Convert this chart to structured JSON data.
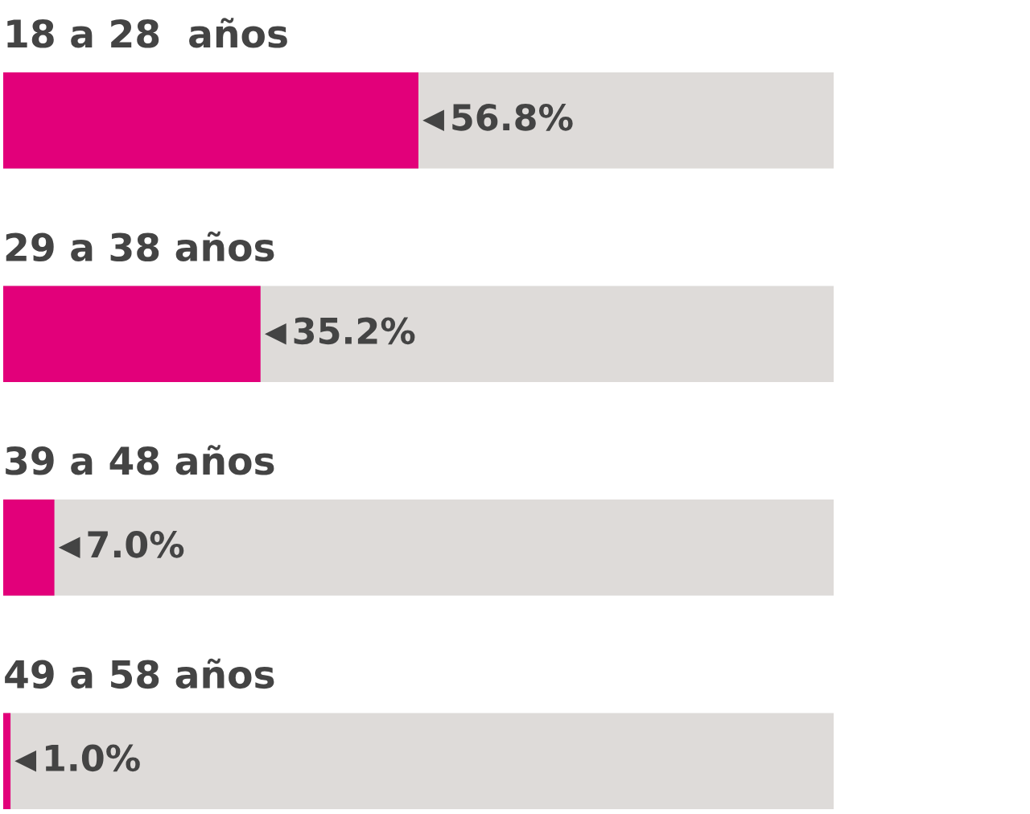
{
  "chart_data": {
    "type": "bar",
    "orientation": "horizontal",
    "categories": [
      "18 a 28  años",
      "29 a 38 años",
      "39 a 48 años",
      "49 a 58 años"
    ],
    "values": [
      56.8,
      35.2,
      7.0,
      1.0
    ],
    "color": "#e2007a",
    "value_labels": [
      "56.8%",
      "35.2%",
      "7.0%",
      "1.0%"
    ],
    "legend": false
  }
}
